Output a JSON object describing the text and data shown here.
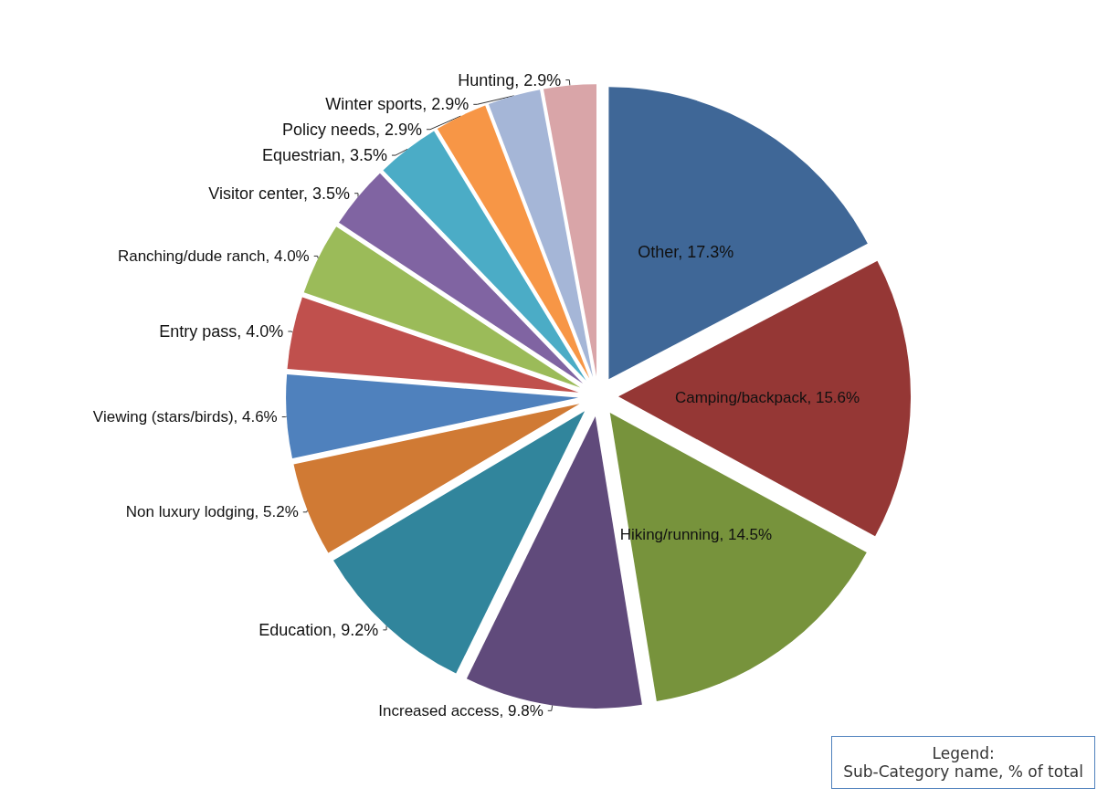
{
  "chart_data": {
    "type": "pie",
    "categories": [
      "Other",
      "Camping/backpack",
      "Hiking/running",
      "Increased access",
      "Education",
      "Non luxury lodging",
      "Viewing (stars/birds)",
      "Entry pass",
      "Ranching/dude ranch",
      "Visitor center",
      "Equestrian",
      "Policy needs",
      "Winter sports",
      "Hunting"
    ],
    "values": [
      17.3,
      15.6,
      14.5,
      9.8,
      9.2,
      5.2,
      4.6,
      4.0,
      4.0,
      3.5,
      3.5,
      2.9,
      2.9,
      2.9
    ],
    "value_labels": [
      "17.3%",
      "15.6%",
      "14.5%",
      "9.8%",
      "9.2%",
      "5.2%",
      "4.6%",
      "4.0%",
      "4.0%",
      "3.5%",
      "3.5%",
      "2.9%",
      "2.9%",
      "2.9%"
    ],
    "colors": [
      "#3f6797",
      "#953735",
      "#77933c",
      "#604a7b",
      "#31859c",
      "#d07a34",
      "#4f81bd",
      "#c0504d",
      "#9bbb59",
      "#8064a2",
      "#4bacc6",
      "#f79646",
      "#a5b6d7",
      "#d9a5a8"
    ],
    "annotations": [
      "Legend:",
      "Sub-Category name, % of total"
    ],
    "legend": false
  }
}
